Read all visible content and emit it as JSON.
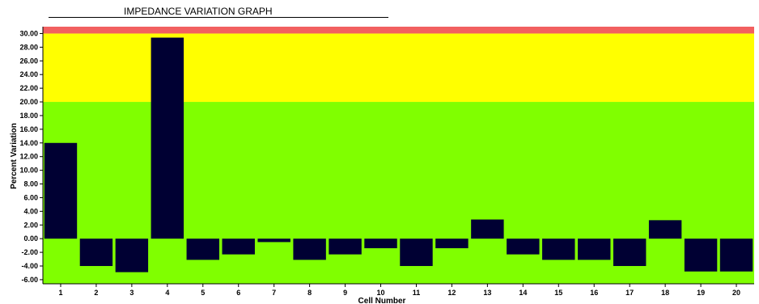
{
  "chart_data": {
    "type": "bar",
    "title": "IMPEDANCE VARIATION GRAPH",
    "xlabel": "Cell Number",
    "ylabel": "Percent Variation",
    "categories": [
      "1",
      "2",
      "3",
      "4",
      "5",
      "6",
      "7",
      "8",
      "9",
      "10",
      "11",
      "12",
      "13",
      "14",
      "15",
      "16",
      "17",
      "18",
      "19",
      "20"
    ],
    "values": [
      14.0,
      -4.0,
      -4.9,
      29.4,
      -3.1,
      -2.3,
      -0.5,
      -3.1,
      -2.3,
      -1.4,
      -4.0,
      -1.4,
      2.8,
      -2.3,
      -3.1,
      -3.1,
      -4.0,
      2.7,
      -4.8,
      -4.8
    ],
    "ylim": [
      -6.6,
      31.0
    ],
    "yticks": [
      "30.00",
      "28.00",
      "26.00",
      "24.00",
      "22.00",
      "20.00",
      "18.00",
      "16.00",
      "14.00",
      "12.00",
      "10.00",
      "8.00",
      "6.00",
      "4.00",
      "2.00",
      "0.00",
      "-2.00",
      "-4.00",
      "-6.00"
    ],
    "bands": [
      {
        "from": -6.6,
        "to": 20,
        "color": "#80ff00"
      },
      {
        "from": 20,
        "to": 30,
        "color": "#ffff00"
      },
      {
        "from": 30,
        "to": 31,
        "color": "#f26060"
      }
    ],
    "bar_color": "#000033",
    "grid": false
  }
}
